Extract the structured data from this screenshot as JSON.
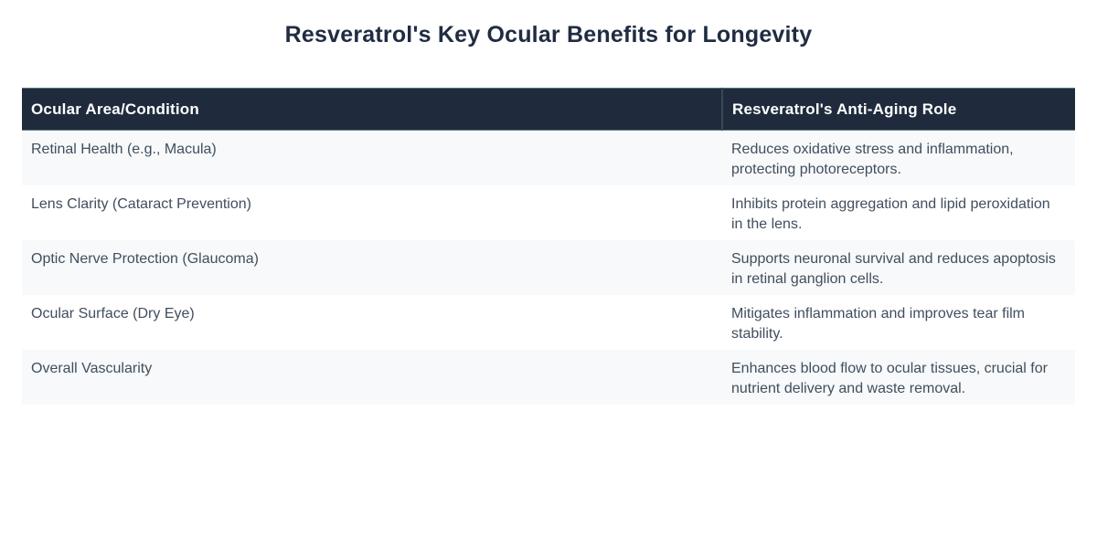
{
  "title": "Resveratrol's Key Ocular Benefits for Longevity",
  "table": {
    "columns": [
      "Ocular Area/Condition",
      "Resveratrol's Anti-Aging Role"
    ],
    "rows": [
      {
        "area": "Retinal Health (e.g., Macula)",
        "role": "Reduces oxidative stress and inflammation, protecting photoreceptors."
      },
      {
        "area": "Lens Clarity (Cataract Prevention)",
        "role": "Inhibits protein aggregation and lipid peroxidation in the lens."
      },
      {
        "area": "Optic Nerve Protection (Glaucoma)",
        "role": "Supports neuronal survival and reduces apoptosis in retinal ganglion cells."
      },
      {
        "area": "Ocular Surface (Dry Eye)",
        "role": "Mitigates inflammation and improves tear film stability."
      },
      {
        "area": "Overall Vascularity",
        "role": "Enhances blood flow to ocular tissues, crucial for nutrient delivery and waste removal."
      }
    ]
  },
  "colors": {
    "page_bg": "#ffffff",
    "title_color": "#202c42",
    "header_bg": "#1f2b3d",
    "header_text": "#ffffff",
    "header_edge": "#5d7a82",
    "header_divider": "#394956",
    "row_alt_bg": "#f7f9fa",
    "row_bg": "#ffffff",
    "body_text": "#414e5e"
  }
}
